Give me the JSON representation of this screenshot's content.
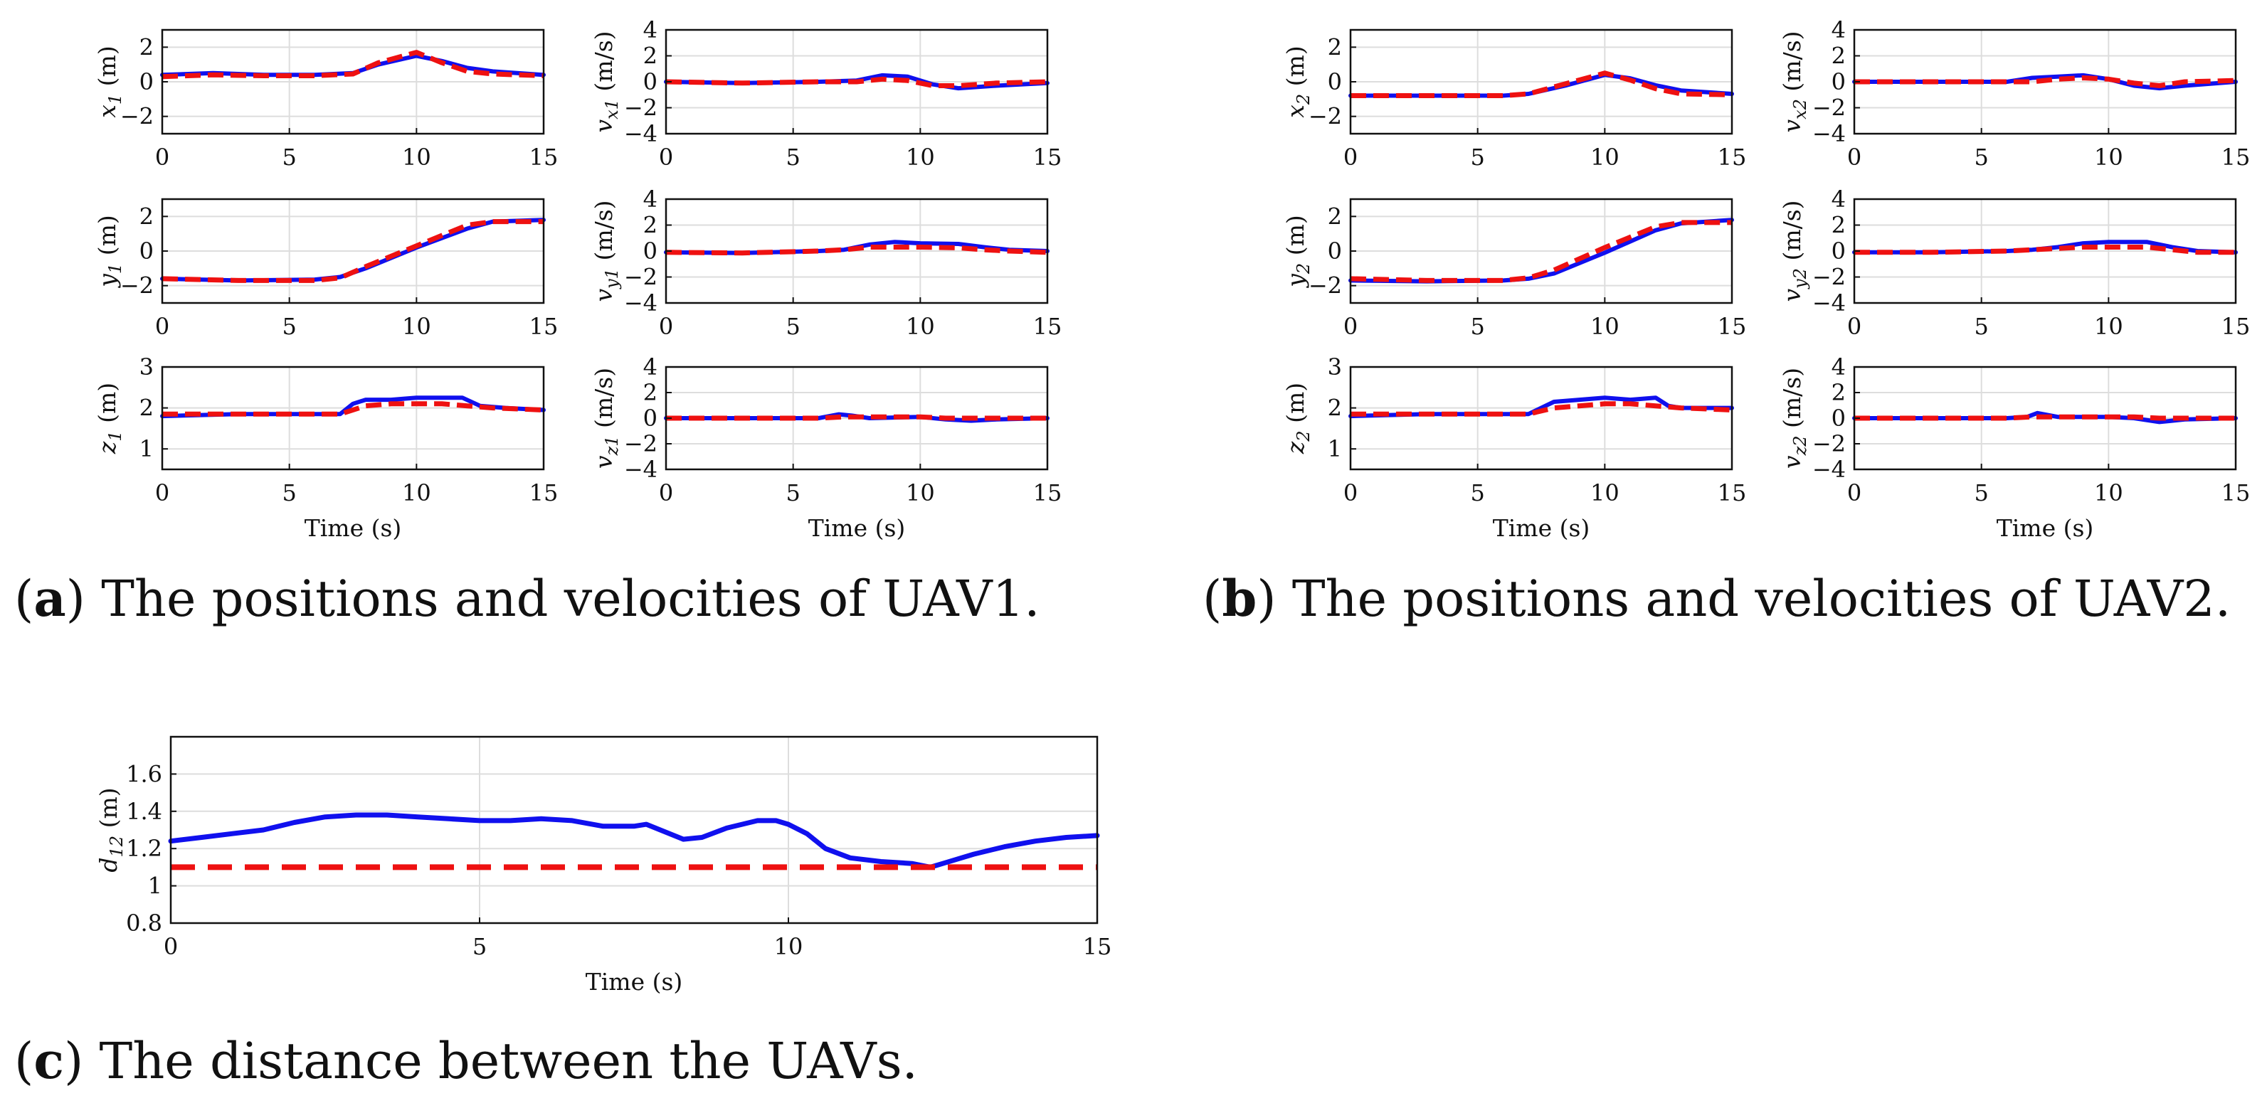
{
  "colors": {
    "actual": "#1010ee",
    "reference": "#ee1111",
    "grid": "#dddddd",
    "axis": "#111111"
  },
  "captions": {
    "a": {
      "tag": "a",
      "text": "The positions and velocities of UAV1."
    },
    "b": {
      "tag": "b",
      "text": "The positions and velocities of UAV2."
    },
    "c": {
      "tag": "c",
      "text": "The distance between the UAVs."
    }
  },
  "chart_data": [
    {
      "id": "x1",
      "panel": "a",
      "type": "line",
      "ylabel": "x1 (m)",
      "xlabel": "",
      "xlim": [
        0,
        15
      ],
      "ylim": [
        -3,
        3
      ],
      "xticks": [
        0,
        5,
        10,
        15
      ],
      "yticks": [
        -2,
        0,
        2
      ],
      "series": [
        {
          "name": "actual",
          "style": "solid",
          "x": [
            0,
            2,
            4,
            6,
            7.5,
            8.5,
            10,
            11,
            12,
            13,
            15
          ],
          "y": [
            0.4,
            0.5,
            0.4,
            0.4,
            0.5,
            1.0,
            1.5,
            1.2,
            0.8,
            0.6,
            0.4
          ]
        },
        {
          "name": "reference",
          "style": "dashed",
          "x": [
            0,
            2,
            4,
            6,
            7.5,
            8.5,
            10,
            11,
            12,
            13,
            15
          ],
          "y": [
            0.3,
            0.4,
            0.35,
            0.35,
            0.45,
            1.1,
            1.7,
            1.1,
            0.6,
            0.45,
            0.35
          ]
        }
      ]
    },
    {
      "id": "vx1",
      "panel": "a",
      "type": "line",
      "ylabel": "vx1 (m/s)",
      "xlabel": "",
      "xlim": [
        0,
        15
      ],
      "ylim": [
        -4,
        4
      ],
      "xticks": [
        0,
        5,
        10,
        15
      ],
      "yticks": [
        -4,
        -2,
        0,
        2,
        4
      ],
      "series": [
        {
          "name": "actual",
          "style": "solid",
          "x": [
            0,
            3,
            6,
            7.5,
            8.5,
            9.5,
            10.5,
            11.5,
            13,
            15
          ],
          "y": [
            0,
            -0.1,
            0,
            0.1,
            0.5,
            0.4,
            -0.2,
            -0.5,
            -0.3,
            -0.1
          ]
        },
        {
          "name": "reference",
          "style": "dashed",
          "x": [
            0,
            3,
            6,
            7.5,
            8.5,
            9.5,
            10.5,
            11.5,
            13,
            15
          ],
          "y": [
            0,
            -0.1,
            0,
            0,
            0.2,
            0.1,
            -0.3,
            -0.3,
            -0.1,
            0
          ]
        }
      ]
    },
    {
      "id": "y1",
      "panel": "a",
      "type": "line",
      "ylabel": "y1 (m)",
      "xlabel": "",
      "xlim": [
        0,
        15
      ],
      "ylim": [
        -3,
        3
      ],
      "xticks": [
        0,
        5,
        10,
        15
      ],
      "yticks": [
        -2,
        0,
        2
      ],
      "series": [
        {
          "name": "actual",
          "style": "solid",
          "x": [
            0,
            3,
            6,
            7,
            8,
            10,
            12,
            13,
            15
          ],
          "y": [
            -1.6,
            -1.7,
            -1.65,
            -1.5,
            -1.0,
            0.2,
            1.3,
            1.7,
            1.8
          ]
        },
        {
          "name": "reference",
          "style": "dashed",
          "x": [
            0,
            3,
            6,
            7,
            8,
            10,
            12,
            13,
            15
          ],
          "y": [
            -1.6,
            -1.7,
            -1.7,
            -1.55,
            -0.9,
            0.3,
            1.5,
            1.7,
            1.7
          ]
        }
      ]
    },
    {
      "id": "vy1",
      "panel": "a",
      "type": "line",
      "ylabel": "vy1 (m/s)",
      "xlabel": "",
      "xlim": [
        0,
        15
      ],
      "ylim": [
        -4,
        4
      ],
      "xticks": [
        0,
        5,
        10,
        15
      ],
      "yticks": [
        -4,
        -2,
        0,
        2,
        4
      ],
      "series": [
        {
          "name": "actual",
          "style": "solid",
          "x": [
            0,
            3,
            6,
            7,
            8,
            9,
            10,
            11.5,
            12.5,
            13.5,
            15
          ],
          "y": [
            -0.1,
            -0.15,
            0,
            0.1,
            0.5,
            0.7,
            0.6,
            0.55,
            0.3,
            0.1,
            0
          ]
        },
        {
          "name": "reference",
          "style": "dashed",
          "x": [
            0,
            3,
            6,
            7,
            8,
            9,
            10,
            11.5,
            12.5,
            13.5,
            15
          ],
          "y": [
            -0.1,
            -0.15,
            0,
            0.1,
            0.3,
            0.3,
            0.3,
            0.25,
            0.1,
            0,
            -0.1
          ]
        }
      ]
    },
    {
      "id": "z1",
      "panel": "a",
      "type": "line",
      "ylabel": "z1 (m)",
      "xlabel": "Time (s)",
      "xlim": [
        0,
        15
      ],
      "ylim": [
        0.5,
        3
      ],
      "xticks": [
        0,
        5,
        10,
        15
      ],
      "yticks": [
        1,
        2,
        3
      ],
      "series": [
        {
          "name": "actual",
          "style": "solid",
          "x": [
            0,
            3,
            6,
            7,
            7.5,
            8,
            9,
            10,
            11,
            11.8,
            12.5,
            13.5,
            15
          ],
          "y": [
            1.8,
            1.85,
            1.85,
            1.85,
            2.1,
            2.2,
            2.2,
            2.25,
            2.25,
            2.25,
            2.05,
            2.0,
            1.95
          ]
        },
        {
          "name": "reference",
          "style": "dashed",
          "x": [
            0,
            3,
            6,
            7,
            8,
            9,
            10,
            11,
            12,
            13,
            15
          ],
          "y": [
            1.85,
            1.85,
            1.85,
            1.85,
            2.05,
            2.1,
            2.1,
            2.1,
            2.05,
            2.0,
            1.95
          ]
        }
      ]
    },
    {
      "id": "vz1",
      "panel": "a",
      "type": "line",
      "ylabel": "vz1 (m/s)",
      "xlabel": "Time (s)",
      "xlim": [
        0,
        15
      ],
      "ylim": [
        -4,
        4
      ],
      "xticks": [
        0,
        5,
        10,
        15
      ],
      "yticks": [
        -4,
        -2,
        0,
        2,
        4
      ],
      "series": [
        {
          "name": "actual",
          "style": "solid",
          "x": [
            0,
            3,
            6,
            6.8,
            7.3,
            8,
            10,
            11,
            12,
            13,
            15
          ],
          "y": [
            0,
            0,
            0,
            0.3,
            0.2,
            0,
            0.1,
            -0.1,
            -0.2,
            -0.1,
            0
          ]
        },
        {
          "name": "reference",
          "style": "dashed",
          "x": [
            0,
            3,
            6,
            7,
            8,
            10,
            11,
            12,
            13,
            15
          ],
          "y": [
            0,
            0,
            0,
            0.1,
            0.1,
            0.1,
            0,
            0,
            0,
            0
          ]
        }
      ]
    },
    {
      "id": "x2",
      "panel": "b",
      "type": "line",
      "ylabel": "x2 (m)",
      "xlabel": "",
      "xlim": [
        0,
        15
      ],
      "ylim": [
        -3,
        3
      ],
      "xticks": [
        0,
        5,
        10,
        15
      ],
      "yticks": [
        -2,
        0,
        2
      ],
      "series": [
        {
          "name": "actual",
          "style": "solid",
          "x": [
            0,
            3,
            6,
            7,
            8.5,
            10,
            11,
            12,
            13,
            15
          ],
          "y": [
            -0.8,
            -0.8,
            -0.8,
            -0.7,
            -0.2,
            0.4,
            0.2,
            -0.2,
            -0.5,
            -0.7
          ]
        },
        {
          "name": "reference",
          "style": "dashed",
          "x": [
            0,
            3,
            6,
            7,
            8.5,
            10,
            11,
            12,
            13,
            15
          ],
          "y": [
            -0.8,
            -0.8,
            -0.8,
            -0.7,
            -0.1,
            0.5,
            0.1,
            -0.4,
            -0.7,
            -0.75
          ]
        }
      ]
    },
    {
      "id": "vx2",
      "panel": "b",
      "type": "line",
      "ylabel": "vx2 (m/s)",
      "xlabel": "",
      "xlim": [
        0,
        15
      ],
      "ylim": [
        -4,
        4
      ],
      "xticks": [
        0,
        5,
        10,
        15
      ],
      "yticks": [
        -4,
        -2,
        0,
        2,
        4
      ],
      "series": [
        {
          "name": "actual",
          "style": "solid",
          "x": [
            0,
            3,
            6,
            7,
            8,
            9,
            10,
            11,
            12,
            13,
            15
          ],
          "y": [
            0,
            0,
            0,
            0.3,
            0.4,
            0.5,
            0.2,
            -0.3,
            -0.5,
            -0.3,
            0
          ]
        },
        {
          "name": "reference",
          "style": "dashed",
          "x": [
            0,
            3,
            6,
            7,
            8,
            9,
            10,
            11,
            12,
            13,
            15
          ],
          "y": [
            0,
            0,
            0,
            0,
            0.2,
            0.3,
            0.2,
            -0.1,
            -0.3,
            0,
            0.1
          ]
        }
      ]
    },
    {
      "id": "y2",
      "panel": "b",
      "type": "line",
      "ylabel": "y2 (m)",
      "xlabel": "",
      "xlim": [
        0,
        15
      ],
      "ylim": [
        -3,
        3
      ],
      "xticks": [
        0,
        5,
        10,
        15
      ],
      "yticks": [
        -2,
        0,
        2
      ],
      "series": [
        {
          "name": "actual",
          "style": "solid",
          "x": [
            0,
            3,
            6,
            7,
            8,
            10,
            12,
            13,
            15
          ],
          "y": [
            -1.7,
            -1.75,
            -1.7,
            -1.6,
            -1.3,
            -0.1,
            1.2,
            1.6,
            1.8
          ]
        },
        {
          "name": "reference",
          "style": "dashed",
          "x": [
            0,
            3,
            6,
            7,
            8,
            10,
            12,
            13,
            15
          ],
          "y": [
            -1.6,
            -1.7,
            -1.7,
            -1.55,
            -1.1,
            0.2,
            1.4,
            1.65,
            1.65
          ]
        }
      ]
    },
    {
      "id": "vy2",
      "panel": "b",
      "type": "line",
      "ylabel": "vy2 (m/s)",
      "xlabel": "",
      "xlim": [
        0,
        15
      ],
      "ylim": [
        -4,
        4
      ],
      "xticks": [
        0,
        5,
        10,
        15
      ],
      "yticks": [
        -4,
        -2,
        0,
        2,
        4
      ],
      "series": [
        {
          "name": "actual",
          "style": "solid",
          "x": [
            0,
            3,
            6,
            7,
            8,
            9,
            10,
            11.5,
            12.5,
            13.5,
            15
          ],
          "y": [
            -0.1,
            -0.1,
            0,
            0.1,
            0.3,
            0.6,
            0.7,
            0.7,
            0.3,
            0,
            -0.1
          ]
        },
        {
          "name": "reference",
          "style": "dashed",
          "x": [
            0,
            3,
            6,
            7,
            8,
            9,
            10,
            11.5,
            12.5,
            13.5,
            15
          ],
          "y": [
            -0.1,
            -0.1,
            0,
            0.1,
            0.2,
            0.3,
            0.3,
            0.3,
            0.1,
            -0.1,
            -0.1
          ]
        }
      ]
    },
    {
      "id": "z2",
      "panel": "b",
      "type": "line",
      "ylabel": "z2 (m)",
      "xlabel": "Time (s)",
      "xlim": [
        0,
        15
      ],
      "ylim": [
        0.5,
        3
      ],
      "xticks": [
        0,
        5,
        10,
        15
      ],
      "yticks": [
        1,
        2,
        3
      ],
      "series": [
        {
          "name": "actual",
          "style": "solid",
          "x": [
            0,
            3,
            6,
            7,
            7.5,
            8,
            9,
            10,
            11,
            12,
            12.5,
            13,
            15
          ],
          "y": [
            1.8,
            1.85,
            1.85,
            1.85,
            2.0,
            2.15,
            2.2,
            2.25,
            2.2,
            2.25,
            2.05,
            2.0,
            2.0
          ]
        },
        {
          "name": "reference",
          "style": "dashed",
          "x": [
            0,
            3,
            6,
            7,
            8,
            9,
            10,
            11,
            12,
            13,
            15
          ],
          "y": [
            1.85,
            1.85,
            1.85,
            1.85,
            2.0,
            2.05,
            2.1,
            2.1,
            2.05,
            2.0,
            1.95
          ]
        }
      ]
    },
    {
      "id": "vz2",
      "panel": "b",
      "type": "line",
      "ylabel": "vz2 (m/s)",
      "xlabel": "Time (s)",
      "xlim": [
        0,
        15
      ],
      "ylim": [
        -4,
        4
      ],
      "xticks": [
        0,
        5,
        10,
        15
      ],
      "yticks": [
        -4,
        -2,
        0,
        2,
        4
      ],
      "series": [
        {
          "name": "actual",
          "style": "solid",
          "x": [
            0,
            3,
            6,
            6.8,
            7.2,
            8,
            10,
            11,
            12,
            13,
            15
          ],
          "y": [
            0,
            0,
            0,
            0.1,
            0.4,
            0.1,
            0.1,
            0,
            -0.3,
            -0.1,
            0
          ]
        },
        {
          "name": "reference",
          "style": "dashed",
          "x": [
            0,
            3,
            6,
            7,
            8,
            10,
            11,
            12,
            13,
            15
          ],
          "y": [
            0,
            0,
            0,
            0.1,
            0.1,
            0.1,
            0.1,
            0,
            0,
            0
          ]
        }
      ]
    },
    {
      "id": "d12",
      "panel": "c",
      "type": "line",
      "ylabel": "d12 (m)",
      "xlabel": "Time (s)",
      "xlim": [
        0,
        15
      ],
      "ylim": [
        0.8,
        1.8
      ],
      "xticks": [
        0,
        5,
        10,
        15
      ],
      "yticks": [
        0.8,
        1,
        1.2,
        1.4,
        1.6
      ],
      "series": [
        {
          "name": "actual",
          "style": "solid",
          "x": [
            0,
            0.5,
            1,
            1.5,
            2,
            2.5,
            3,
            3.5,
            4,
            4.5,
            5,
            5.5,
            6,
            6.5,
            7,
            7.5,
            7.7,
            8,
            8.3,
            8.6,
            9,
            9.5,
            9.8,
            10,
            10.3,
            10.6,
            11,
            11.5,
            12,
            12.3,
            12.5,
            13,
            13.5,
            14,
            14.5,
            15
          ],
          "y": [
            1.24,
            1.26,
            1.28,
            1.3,
            1.34,
            1.37,
            1.38,
            1.38,
            1.37,
            1.36,
            1.35,
            1.35,
            1.36,
            1.35,
            1.32,
            1.32,
            1.33,
            1.29,
            1.25,
            1.26,
            1.31,
            1.35,
            1.35,
            1.33,
            1.28,
            1.2,
            1.15,
            1.13,
            1.12,
            1.1,
            1.12,
            1.17,
            1.21,
            1.24,
            1.26,
            1.27
          ]
        },
        {
          "name": "reference",
          "style": "dashed",
          "x": [
            0,
            15
          ],
          "y": [
            1.1,
            1.1
          ]
        }
      ]
    }
  ]
}
